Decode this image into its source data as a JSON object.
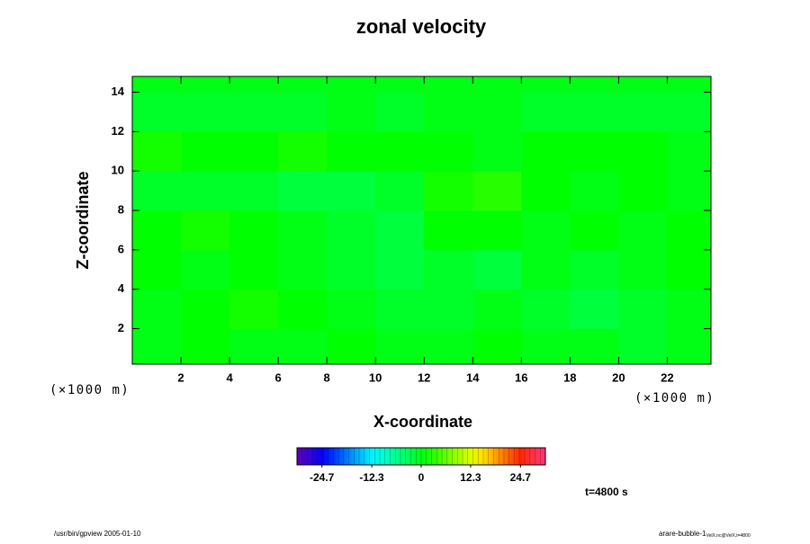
{
  "chart_data": {
    "type": "heatmap",
    "title": "zonal velocity",
    "x_label": "X-coordinate",
    "y_label": "Z-coordinate",
    "x_unit": "(×1000 m)",
    "y_unit": "(×1000 m)",
    "xlim": [
      0,
      23.8
    ],
    "ylim": [
      0.2,
      14.8
    ],
    "xticks": [
      2,
      4,
      6,
      8,
      10,
      12,
      14,
      16,
      18,
      20,
      22
    ],
    "yticks": [
      2,
      4,
      6,
      8,
      10,
      12,
      14
    ],
    "x": [
      1,
      3,
      5,
      7,
      9,
      11,
      13,
      15,
      17,
      19,
      21,
      23
    ],
    "y": [
      1,
      3,
      5,
      7,
      9,
      11,
      13,
      15
    ],
    "z": [
      [
        0,
        1,
        0,
        0,
        1,
        0,
        0,
        1,
        0,
        0,
        -1,
        0
      ],
      [
        0,
        1,
        2,
        1,
        0,
        -1,
        -1,
        0,
        -1,
        -2,
        -1,
        0
      ],
      [
        1,
        0,
        1,
        0,
        -1,
        -2,
        -1,
        -2,
        0,
        -1,
        0,
        1
      ],
      [
        1,
        2,
        1,
        0,
        -1,
        -2,
        1,
        1,
        0,
        1,
        0,
        1
      ],
      [
        -1,
        -1,
        -1,
        -2,
        -2,
        -1,
        2,
        3,
        1,
        0,
        1,
        0
      ],
      [
        2,
        1,
        1,
        2,
        1,
        1,
        1,
        0,
        1,
        1,
        1,
        0
      ],
      [
        -1,
        -1,
        -1,
        -1,
        0,
        -1,
        0,
        0,
        -1,
        -1,
        -1,
        -1
      ],
      [
        0,
        0,
        0,
        0,
        0,
        0,
        0,
        0,
        0,
        0,
        0,
        0
      ]
    ],
    "clim": [
      -30.9,
      30.9
    ],
    "colorbar_ticks": [
      -24.7,
      -12.3,
      0,
      12.3,
      24.7
    ],
    "annotation": "t=4800 s",
    "footer_left": "/usr/bin/gpview 2005-01-10",
    "footer_right": "arare-bubble-1",
    "footer_right_sub": "VelX.nc@VelX,t=4800"
  }
}
